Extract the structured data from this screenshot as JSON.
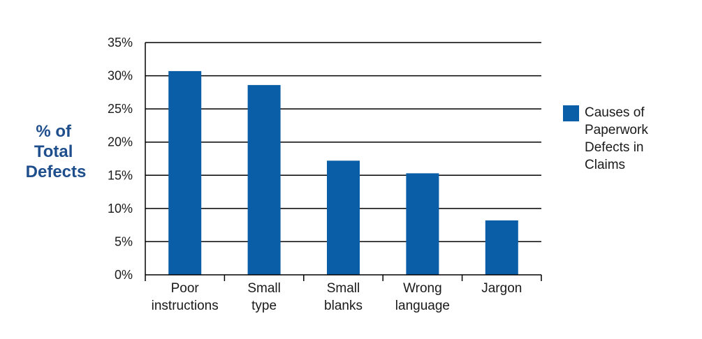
{
  "chart_data": {
    "type": "bar",
    "ylabel_lines": [
      "% of",
      "Total",
      "Defects"
    ],
    "categories": [
      [
        "Poor",
        "instructions"
      ],
      [
        "Small",
        "type"
      ],
      [
        "Small",
        "blanks"
      ],
      [
        "Wrong",
        "language"
      ],
      [
        "Jargon"
      ]
    ],
    "series": [
      {
        "name_lines": [
          "Causes of",
          "Paperwork",
          "Defects in",
          "Claims"
        ],
        "values": [
          30.7,
          28.6,
          17.2,
          15.3,
          8.2
        ],
        "color": "#0a5ea8"
      }
    ],
    "ylim": [
      0,
      35
    ],
    "yticks": [
      0,
      5,
      10,
      15,
      20,
      25,
      30,
      35
    ],
    "ytick_labels": [
      "0%",
      "5%",
      "10%",
      "15%",
      "20%",
      "25%",
      "30%",
      "35%"
    ],
    "grid": true,
    "legend": "right"
  }
}
